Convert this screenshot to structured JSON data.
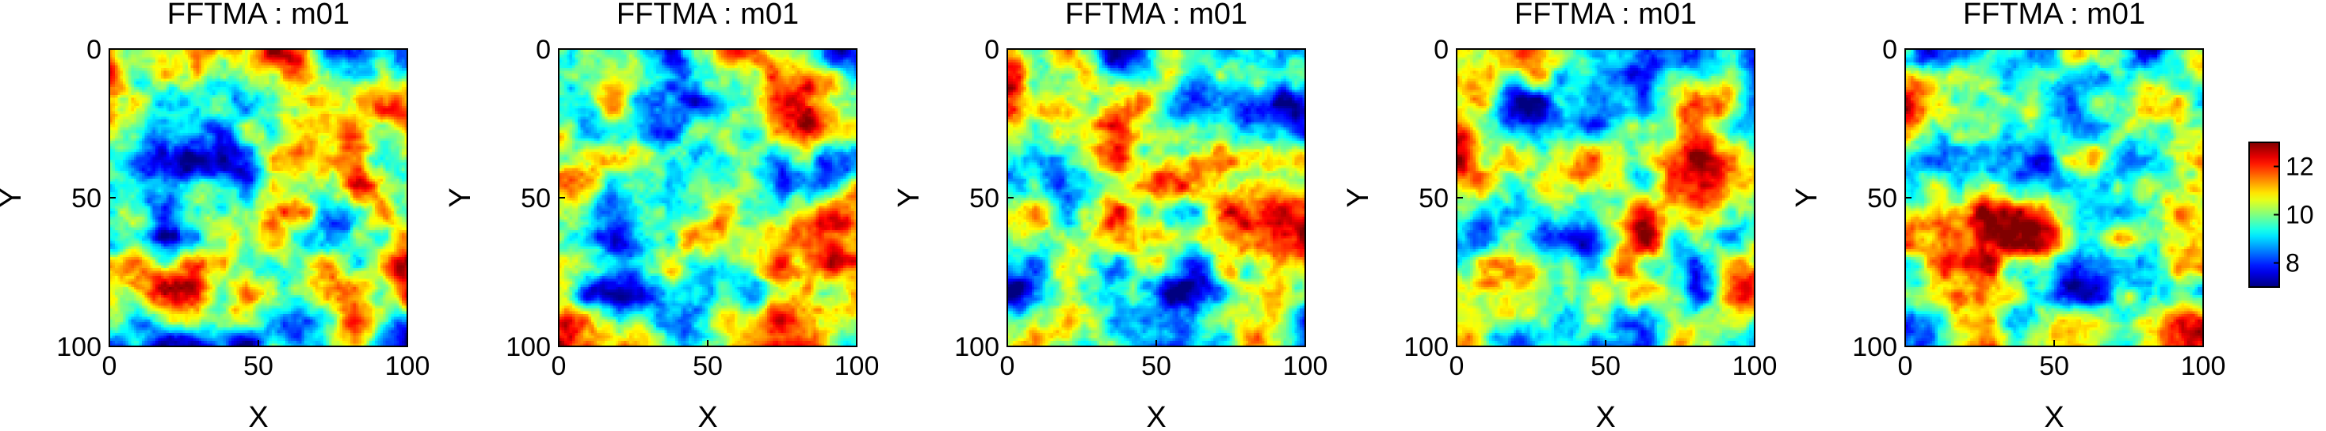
{
  "chart_data": {
    "type": "heatmap",
    "colormap": "jet",
    "grid": false,
    "colorbar": {
      "placement": "right",
      "range": [
        7,
        13
      ],
      "ticks": [
        8,
        10,
        12
      ],
      "tick_labels": [
        "8",
        "10",
        "12"
      ]
    },
    "panels": [
      {
        "title": "FFTMA : m01",
        "xlabel": "X",
        "ylabel": "Y",
        "xlim": [
          0,
          100
        ],
        "ylim": [
          0,
          100
        ],
        "y_reversed": true,
        "xticks": [
          0,
          50,
          100
        ],
        "xtick_labels": [
          "0",
          "50",
          "100"
        ],
        "yticks": [
          0,
          50,
          100
        ],
        "ytick_labels": [
          "0",
          "50",
          "100"
        ]
      },
      {
        "title": "FFTMA : m01",
        "xlabel": "X",
        "ylabel": "Y",
        "xlim": [
          0,
          100
        ],
        "ylim": [
          0,
          100
        ],
        "y_reversed": true,
        "xticks": [
          0,
          50,
          100
        ],
        "xtick_labels": [
          "0",
          "50",
          "100"
        ],
        "yticks": [
          0,
          50,
          100
        ],
        "ytick_labels": [
          "0",
          "50",
          "100"
        ]
      },
      {
        "title": "FFTMA : m01",
        "xlabel": "X",
        "ylabel": "Y",
        "xlim": [
          0,
          100
        ],
        "ylim": [
          0,
          100
        ],
        "y_reversed": true,
        "xticks": [
          0,
          50,
          100
        ],
        "xtick_labels": [
          "0",
          "50",
          "100"
        ],
        "yticks": [
          0,
          50,
          100
        ],
        "ytick_labels": [
          "0",
          "50",
          "100"
        ]
      },
      {
        "title": "FFTMA : m01",
        "xlabel": "X",
        "ylabel": "Y",
        "xlim": [
          0,
          100
        ],
        "ylim": [
          0,
          100
        ],
        "y_reversed": true,
        "xticks": [
          0,
          50,
          100
        ],
        "xtick_labels": [
          "0",
          "50",
          "100"
        ],
        "yticks": [
          0,
          50,
          100
        ],
        "ytick_labels": [
          "0",
          "50",
          "100"
        ]
      },
      {
        "title": "FFTMA : m01",
        "xlabel": "X",
        "ylabel": "Y",
        "xlim": [
          0,
          100
        ],
        "ylim": [
          0,
          100
        ],
        "y_reversed": true,
        "xticks": [
          0,
          50,
          100
        ],
        "xtick_labels": [
          "0",
          "50",
          "100"
        ],
        "yticks": [
          0,
          50,
          100
        ],
        "ytick_labels": [
          "0",
          "50",
          "100"
        ]
      }
    ]
  }
}
